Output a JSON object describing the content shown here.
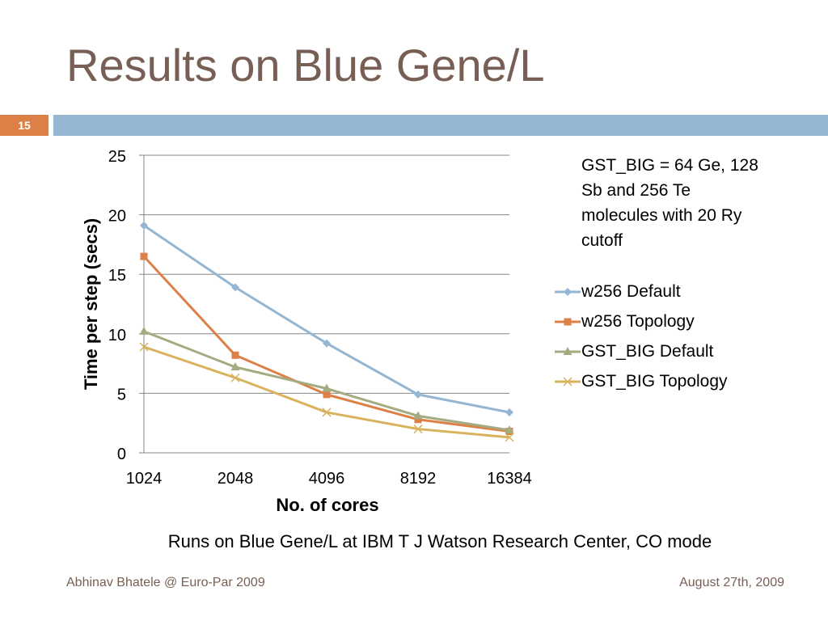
{
  "slide": {
    "title": "Results on Blue Gene/L",
    "number": "15",
    "note": "GST_BIG = 64 Ge, 128 Sb and 256 Te molecules with 20 Ry cutoff",
    "caption": "Runs on Blue Gene/L at IBM T J Watson Research Center, CO mode",
    "footer_left": "Abhinav Bhatele @ Euro-Par 2009",
    "footer_right": "August 27th, 2009"
  },
  "colors": {
    "title": "#775f55",
    "accent_orange": "#dd8047",
    "accent_blue": "#94b6d2"
  },
  "chart_data": {
    "type": "line",
    "categories": [
      "1024",
      "2048",
      "4096",
      "8192",
      "16384"
    ],
    "xlabel": "No. of cores",
    "ylabel": "Time per step (secs)",
    "ylim": [
      0,
      25
    ],
    "yticks": [
      0,
      5,
      10,
      15,
      20,
      25
    ],
    "grid": true,
    "legend_position": "right",
    "series": [
      {
        "name": "w256 Default",
        "values": [
          19.1,
          13.9,
          9.2,
          4.9,
          3.4
        ],
        "color": "#94b6d2",
        "marker": "diamond"
      },
      {
        "name": "w256 Topology",
        "values": [
          16.5,
          8.2,
          4.9,
          2.8,
          1.8
        ],
        "color": "#dd8047",
        "marker": "square"
      },
      {
        "name": "GST_BIG Default",
        "values": [
          10.2,
          7.2,
          5.4,
          3.1,
          1.9
        ],
        "color": "#a5ab81",
        "marker": "triangle"
      },
      {
        "name": "GST_BIG Topology",
        "values": [
          8.9,
          6.3,
          3.4,
          2.0,
          1.3
        ],
        "color": "#d8b25c",
        "marker": "x"
      }
    ]
  }
}
